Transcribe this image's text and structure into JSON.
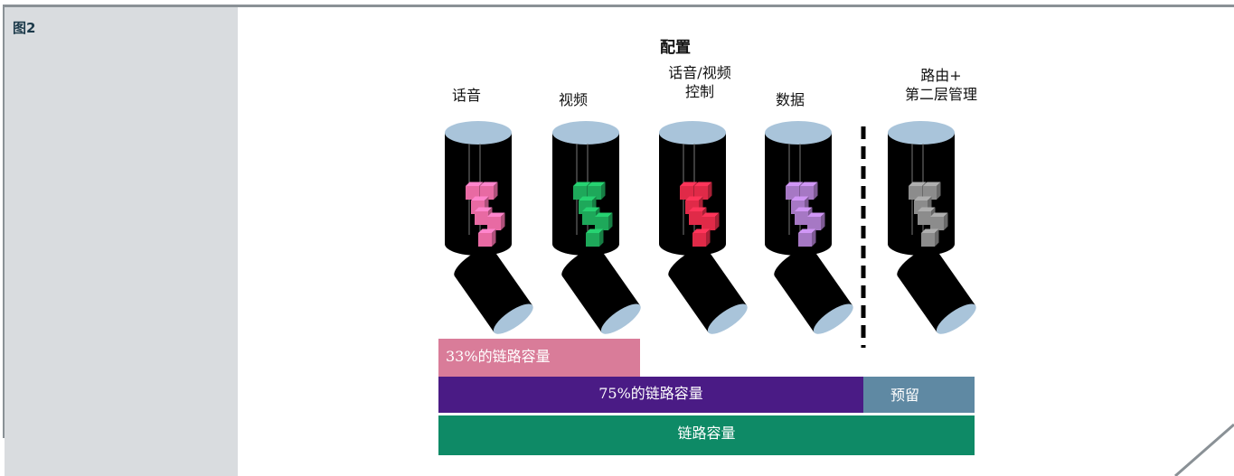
{
  "figure_label": "图2",
  "diagram": {
    "title": "配置",
    "categories": [
      {
        "label_lines": [
          "话音"
        ],
        "cube_color": "#e86aa3"
      },
      {
        "label_lines": [
          "视频"
        ],
        "cube_color": "#1ea85a"
      },
      {
        "label_lines": [
          "话音/视频",
          "控制"
        ],
        "cube_color": "#e02a48"
      },
      {
        "label_lines": [
          "数据"
        ],
        "cube_color": "#a678c4"
      },
      {
        "label_lines": [
          "路由+",
          "第二层管理"
        ],
        "cube_color": "#8c8c8c"
      }
    ],
    "bars": [
      {
        "label": "33%的链路容量",
        "color": "#d97c99"
      },
      {
        "label": "75%的链路容量",
        "color": "#4a1b85"
      },
      {
        "label": "预留",
        "color": "#5f89a3"
      },
      {
        "label": "链路容量",
        "color": "#0e8a66"
      }
    ],
    "colors": {
      "sidebar": "#d9dcdf",
      "cylinder_cap": "#a9c4da",
      "cylinder_body": "#000000"
    }
  }
}
